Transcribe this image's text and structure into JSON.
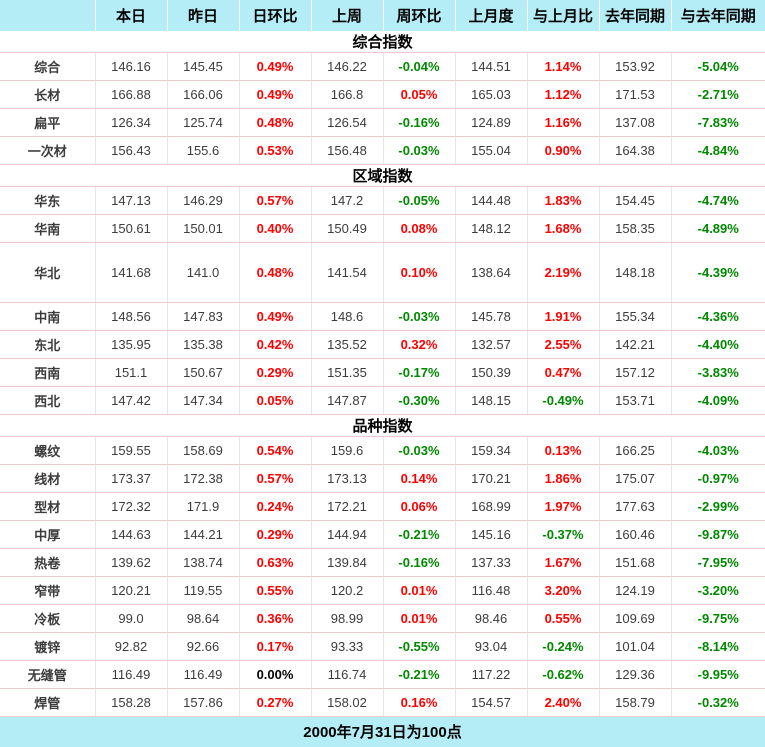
{
  "chart_data": {
    "type": "table",
    "columns": [
      "",
      "本日",
      "昨日",
      "日环比",
      "上周",
      "周环比",
      "上月度",
      "与上月比",
      "去年同期",
      "与去年同期"
    ],
    "sections": [
      {
        "title": "综合指数",
        "rows": [
          {
            "label": "综合",
            "values": [
              "146.16",
              "145.45",
              "0.49%",
              "146.22",
              "-0.04%",
              "144.51",
              "1.14%",
              "153.92",
              "-5.04%"
            ]
          },
          {
            "label": "长材",
            "values": [
              "166.88",
              "166.06",
              "0.49%",
              "166.8",
              "0.05%",
              "165.03",
              "1.12%",
              "171.53",
              "-2.71%"
            ]
          },
          {
            "label": "扁平",
            "values": [
              "126.34",
              "125.74",
              "0.48%",
              "126.54",
              "-0.16%",
              "124.89",
              "1.16%",
              "137.08",
              "-7.83%"
            ]
          },
          {
            "label": "一次材",
            "values": [
              "156.43",
              "155.6",
              "0.53%",
              "156.48",
              "-0.03%",
              "155.04",
              "0.90%",
              "164.38",
              "-4.84%"
            ]
          }
        ]
      },
      {
        "title": "区域指数",
        "rows": [
          {
            "label": "华东",
            "values": [
              "147.13",
              "146.29",
              "0.57%",
              "147.2",
              "-0.05%",
              "144.48",
              "1.83%",
              "154.45",
              "-4.74%"
            ]
          },
          {
            "label": "华南",
            "values": [
              "150.61",
              "150.01",
              "0.40%",
              "150.49",
              "0.08%",
              "148.12",
              "1.68%",
              "158.35",
              "-4.89%"
            ]
          },
          {
            "label": "华北",
            "tall": true,
            "values": [
              "141.68",
              "141.0",
              "0.48%",
              "141.54",
              "0.10%",
              "138.64",
              "2.19%",
              "148.18",
              "-4.39%"
            ]
          },
          {
            "label": "中南",
            "values": [
              "148.56",
              "147.83",
              "0.49%",
              "148.6",
              "-0.03%",
              "145.78",
              "1.91%",
              "155.34",
              "-4.36%"
            ]
          },
          {
            "label": "东北",
            "values": [
              "135.95",
              "135.38",
              "0.42%",
              "135.52",
              "0.32%",
              "132.57",
              "2.55%",
              "142.21",
              "-4.40%"
            ]
          },
          {
            "label": "西南",
            "values": [
              "151.1",
              "150.67",
              "0.29%",
              "151.35",
              "-0.17%",
              "150.39",
              "0.47%",
              "157.12",
              "-3.83%"
            ]
          },
          {
            "label": "西北",
            "values": [
              "147.42",
              "147.34",
              "0.05%",
              "147.87",
              "-0.30%",
              "148.15",
              "-0.49%",
              "153.71",
              "-4.09%"
            ]
          }
        ]
      },
      {
        "title": "品种指数",
        "rows": [
          {
            "label": "螺纹",
            "values": [
              "159.55",
              "158.69",
              "0.54%",
              "159.6",
              "-0.03%",
              "159.34",
              "0.13%",
              "166.25",
              "-4.03%"
            ]
          },
          {
            "label": "线材",
            "values": [
              "173.37",
              "172.38",
              "0.57%",
              "173.13",
              "0.14%",
              "170.21",
              "1.86%",
              "175.07",
              "-0.97%"
            ]
          },
          {
            "label": "型材",
            "values": [
              "172.32",
              "171.9",
              "0.24%",
              "172.21",
              "0.06%",
              "168.99",
              "1.97%",
              "177.63",
              "-2.99%"
            ]
          },
          {
            "label": "中厚",
            "values": [
              "144.63",
              "144.21",
              "0.29%",
              "144.94",
              "-0.21%",
              "145.16",
              "-0.37%",
              "160.46",
              "-9.87%"
            ]
          },
          {
            "label": "热卷",
            "values": [
              "139.62",
              "138.74",
              "0.63%",
              "139.84",
              "-0.16%",
              "137.33",
              "1.67%",
              "151.68",
              "-7.95%"
            ]
          },
          {
            "label": "窄带",
            "values": [
              "120.21",
              "119.55",
              "0.55%",
              "120.2",
              "0.01%",
              "116.48",
              "3.20%",
              "124.19",
              "-3.20%"
            ]
          },
          {
            "label": "冷板",
            "values": [
              "99.0",
              "98.64",
              "0.36%",
              "98.99",
              "0.01%",
              "98.46",
              "0.55%",
              "109.69",
              "-9.75%"
            ]
          },
          {
            "label": "镀锌",
            "values": [
              "92.82",
              "92.66",
              "0.17%",
              "93.33",
              "-0.55%",
              "93.04",
              "-0.24%",
              "101.04",
              "-8.14%"
            ]
          },
          {
            "label": "无缝管",
            "values": [
              "116.49",
              "116.49",
              "0.00%",
              "116.74",
              "-0.21%",
              "117.22",
              "-0.62%",
              "129.36",
              "-9.95%"
            ]
          },
          {
            "label": "焊管",
            "values": [
              "158.28",
              "157.86",
              "0.27%",
              "158.02",
              "0.16%",
              "154.57",
              "2.40%",
              "158.79",
              "-0.32%"
            ]
          }
        ]
      }
    ],
    "footer": "2000年7月31日为100点"
  },
  "colors": {
    "header_bg": "#b5edf6",
    "up": "#fe0000",
    "down": "#008800",
    "flat": "#000000",
    "label": "#009900",
    "value": "#3c3c3c"
  }
}
